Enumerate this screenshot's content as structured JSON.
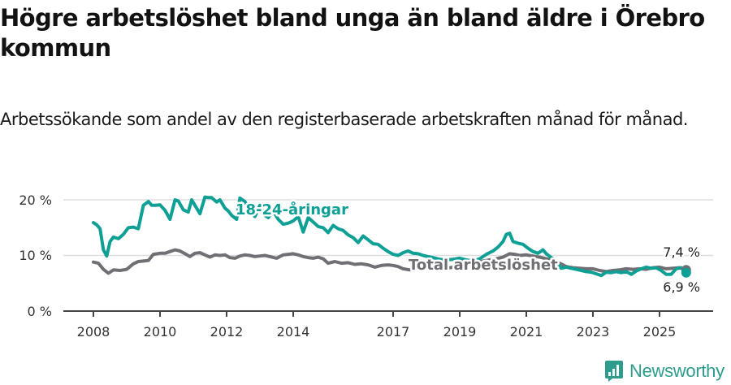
{
  "header": {
    "title": "Högre arbetslöshet bland unga än bland äldre i Örebro kommun",
    "subtitle": "Arbetssökande som andel av den registerbaserade arbetskraften månad för månad."
  },
  "colors": {
    "youth": "#0e9f95",
    "total": "#707074",
    "grid": "#dedede",
    "axis": "#444444",
    "brand": "#2e9c8c"
  },
  "brand": {
    "name": "Newsworthy",
    "icon": "bar-chart-speech-bubble-icon"
  },
  "chart_data": {
    "type": "line",
    "title": "Högre arbetslöshet bland unga än bland äldre i Örebro kommun",
    "subtitle": "Arbetssökande som andel av den registerbaserade arbetskraften månad för månad.",
    "xlabel": "",
    "ylabel": "",
    "ylim": [
      0,
      20
    ],
    "y_ticks": [
      {
        "value": 0,
        "label": "0 %"
      },
      {
        "value": 10,
        "label": "10 %"
      },
      {
        "value": 20,
        "label": "20 %"
      }
    ],
    "x_ticks": [
      {
        "value": 2008,
        "label": "2008"
      },
      {
        "value": 2010,
        "label": "2010"
      },
      {
        "value": 2012,
        "label": "2012"
      },
      {
        "value": 2014,
        "label": "2014"
      },
      {
        "value": 2017,
        "label": "2017"
      },
      {
        "value": 2019,
        "label": "2019"
      },
      {
        "value": 2021,
        "label": "2021"
      },
      {
        "value": 2023,
        "label": "2023"
      },
      {
        "value": 2025,
        "label": "2025"
      }
    ],
    "grid": true,
    "legend_position": "inline labels",
    "series": [
      {
        "name": "18-24-åringar",
        "color": "#0e9f95",
        "end_value_label": "6,9 %",
        "x": [
          2008.0,
          2008.1,
          2008.2,
          2008.3,
          2008.4,
          2008.5,
          2008.6,
          2008.75,
          2008.9,
          2009.05,
          2009.2,
          2009.35,
          2009.5,
          2009.65,
          2009.75,
          2009.85,
          2010.0,
          2010.15,
          2010.3,
          2010.45,
          2010.55,
          2010.7,
          2010.85,
          2010.95,
          2011.05,
          2011.2,
          2011.35,
          2011.45,
          2011.55,
          2011.7,
          2011.8,
          2011.95,
          2012.05,
          2012.15,
          2012.3,
          2012.4,
          2012.55,
          2012.7,
          2012.85,
          2013.0,
          2013.15,
          2013.25,
          2013.4,
          2013.55,
          2013.7,
          2013.85,
          2014.0,
          2014.15,
          2014.3,
          2014.45,
          2014.6,
          2014.75,
          2014.9,
          2015.05,
          2015.2,
          2015.35,
          2015.5,
          2015.65,
          2015.8,
          2015.95,
          2016.1,
          2016.25,
          2016.4,
          2016.55,
          2016.7,
          2016.85,
          2017.0,
          2017.15,
          2017.3,
          2017.45,
          2017.6,
          2017.75,
          2017.9,
          2018.05,
          2018.2,
          2018.4,
          2018.6,
          2018.8,
          2019.0,
          2019.2,
          2019.4,
          2019.6,
          2019.8,
          2020.0,
          2020.15,
          2020.3,
          2020.4,
          2020.5,
          2020.6,
          2020.75,
          2020.9,
          2021.05,
          2021.2,
          2021.35,
          2021.5,
          2021.6,
          2021.75,
          2021.9,
          2022.05,
          2022.2,
          2022.35,
          2022.5,
          2022.65,
          2022.8,
          2022.95,
          2023.1,
          2023.25,
          2023.4,
          2023.55,
          2023.7,
          2023.85,
          2024.0,
          2024.15,
          2024.3,
          2024.45,
          2024.6,
          2024.75,
          2024.9,
          2025.05,
          2025.2,
          2025.35,
          2025.5,
          2025.65,
          2025.8
        ],
        "values": [
          15.9,
          15.5,
          14.8,
          11.0,
          9.9,
          12.5,
          13.3,
          13.0,
          13.8,
          15.0,
          15.1,
          14.8,
          19.0,
          19.7,
          19.0,
          19.0,
          19.1,
          18.1,
          16.5,
          20.0,
          19.8,
          18.2,
          17.8,
          20.0,
          19.0,
          17.5,
          20.5,
          20.4,
          20.4,
          19.6,
          20.0,
          18.5,
          18.0,
          17.2,
          16.5,
          20.3,
          19.7,
          18.0,
          17.0,
          19.0,
          17.2,
          16.8,
          18.0,
          16.5,
          15.6,
          15.8,
          16.2,
          17.0,
          14.2,
          16.8,
          16.0,
          15.2,
          15.0,
          14.1,
          15.4,
          14.8,
          14.5,
          13.7,
          13.2,
          12.3,
          13.5,
          12.8,
          12.1,
          12.0,
          11.3,
          10.7,
          10.2,
          10.0,
          10.5,
          10.8,
          10.4,
          10.3,
          10.0,
          9.8,
          9.6,
          9.3,
          9.2,
          9.3,
          9.5,
          9.2,
          9.0,
          9.4,
          10.2,
          10.8,
          11.5,
          12.5,
          13.8,
          14.0,
          12.5,
          12.2,
          12.0,
          11.3,
          10.7,
          10.4,
          11.0,
          10.3,
          9.6,
          8.9,
          7.7,
          7.9,
          7.7,
          7.5,
          7.3,
          7.1,
          7.0,
          6.7,
          6.4,
          7.0,
          6.9,
          7.1,
          6.9,
          7.1,
          6.6,
          7.2,
          7.6,
          7.9,
          7.7,
          7.8,
          7.3,
          6.6,
          6.6,
          7.6,
          7.8,
          6.9
        ]
      },
      {
        "name": "Total arbetslöshet",
        "color": "#707074",
        "end_value_label": "7,4 %",
        "x": [
          2008.0,
          2008.15,
          2008.3,
          2008.45,
          2008.6,
          2008.8,
          2009.0,
          2009.2,
          2009.35,
          2009.5,
          2009.65,
          2009.8,
          2010.0,
          2010.15,
          2010.3,
          2010.45,
          2010.6,
          2010.75,
          2010.9,
          2011.05,
          2011.2,
          2011.35,
          2011.5,
          2011.65,
          2011.8,
          2011.95,
          2012.1,
          2012.25,
          2012.4,
          2012.55,
          2012.7,
          2012.85,
          2013.0,
          2013.15,
          2013.3,
          2013.5,
          2013.7,
          2013.85,
          2014.0,
          2014.15,
          2014.3,
          2014.45,
          2014.6,
          2014.75,
          2014.9,
          2015.05,
          2015.25,
          2015.45,
          2015.65,
          2015.85,
          2016.05,
          2016.25,
          2016.45,
          2016.65,
          2016.85,
          2017.0,
          2017.15,
          2017.3,
          2017.5,
          2017.7,
          2017.9,
          2018.1,
          2018.3,
          2018.5,
          2018.7,
          2018.9,
          2019.1,
          2019.3,
          2019.5,
          2019.7,
          2019.9,
          2020.1,
          2020.3,
          2020.5,
          2020.65,
          2020.8,
          2021.0,
          2021.2,
          2021.4,
          2021.6,
          2021.8,
          2022.0,
          2022.2,
          2022.4,
          2022.6,
          2022.8,
          2023.0,
          2023.2,
          2023.4,
          2023.6,
          2023.8,
          2024.0,
          2024.2,
          2024.4,
          2024.6,
          2024.8,
          2025.0,
          2025.2,
          2025.4,
          2025.6,
          2025.8
        ],
        "values": [
          8.8,
          8.6,
          7.5,
          6.8,
          7.4,
          7.3,
          7.5,
          8.5,
          8.9,
          9.0,
          9.1,
          10.2,
          10.4,
          10.4,
          10.7,
          11.0,
          10.8,
          10.3,
          9.8,
          10.4,
          10.5,
          10.1,
          9.7,
          10.1,
          10.0,
          10.1,
          9.6,
          9.5,
          9.9,
          10.1,
          10.0,
          9.8,
          9.9,
          10.0,
          9.8,
          9.5,
          10.1,
          10.2,
          10.3,
          10.1,
          9.8,
          9.6,
          9.5,
          9.7,
          9.4,
          8.6,
          8.9,
          8.6,
          8.7,
          8.4,
          8.5,
          8.3,
          7.9,
          8.2,
          8.3,
          8.2,
          8.0,
          7.6,
          7.4,
          7.7,
          7.7,
          7.8,
          7.7,
          7.6,
          7.8,
          8.0,
          8.1,
          8.5,
          8.8,
          9.0,
          9.2,
          9.4,
          9.7,
          10.3,
          10.2,
          10.0,
          10.1,
          9.9,
          9.7,
          9.4,
          9.1,
          8.6,
          8.0,
          7.8,
          7.7,
          7.6,
          7.6,
          7.3,
          7.1,
          7.3,
          7.4,
          7.6,
          7.5,
          7.6,
          7.5,
          7.8,
          7.9,
          7.6,
          7.7,
          7.8,
          7.4
        ]
      }
    ],
    "annotations": [
      {
        "text": "18-24-åringar",
        "x": 2012.3,
        "y": 18.8,
        "color": "#0e9f95"
      },
      {
        "text": "Total arbetslöshet",
        "x": 2017.5,
        "y": 8.5,
        "color": "#707074"
      },
      {
        "text": "7,4 %",
        "position": "above end of total line"
      },
      {
        "text": "6,9 %",
        "position": "below end of youth line"
      }
    ]
  }
}
